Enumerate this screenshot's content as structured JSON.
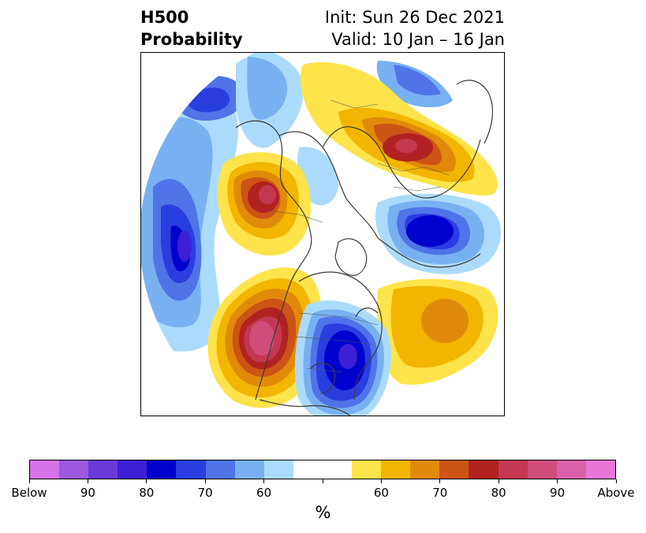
{
  "title": {
    "line1_left": "H500",
    "line2_left": "Probability",
    "line1_right": "Init: Sun 26 Dec 2021",
    "line2_right": "Valid: 10 Jan – 16 Jan"
  },
  "colorbar": {
    "unit": "%",
    "colors": [
      "#d672e8",
      "#9b59e0",
      "#6a3ad9",
      "#3d1fd6",
      "#0000cc",
      "#2a3ee0",
      "#4f74e8",
      "#78b1f2",
      "#abdbfc",
      "#ffffff",
      "#ffffff",
      "#ffe34a",
      "#f2b500",
      "#e08a0b",
      "#cc5416",
      "#b22222",
      "#c43752",
      "#cf4e7b",
      "#d960a8",
      "#e876d6"
    ],
    "labels": [
      {
        "text": "Below",
        "at": 0
      },
      {
        "text": "90",
        "at": 2
      },
      {
        "text": "80",
        "at": 4
      },
      {
        "text": "70",
        "at": 6
      },
      {
        "text": "60",
        "at": 8
      },
      {
        "text": "60",
        "at": 12
      },
      {
        "text": "70",
        "at": 14
      },
      {
        "text": "80",
        "at": 16
      },
      {
        "text": "90",
        "at": 18
      },
      {
        "text": "Above",
        "at": 20
      }
    ],
    "ticks": [
      0,
      2,
      4,
      6,
      8,
      10,
      12,
      14,
      16,
      18,
      20
    ]
  }
}
